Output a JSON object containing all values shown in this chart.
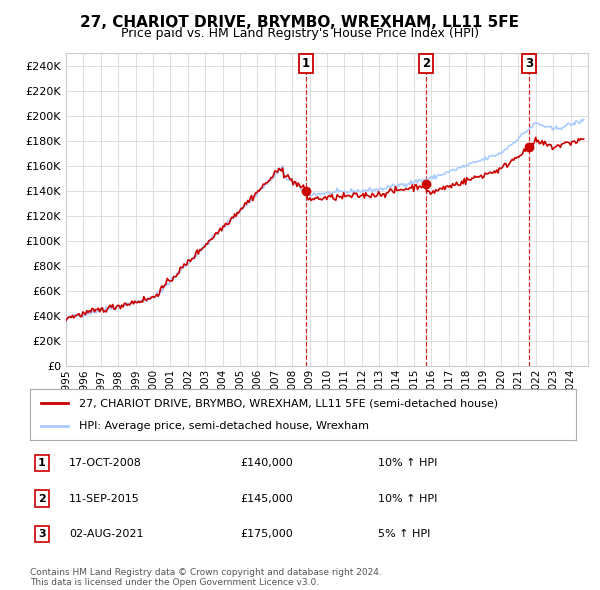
{
  "title": "27, CHARIOT DRIVE, BRYMBO, WREXHAM, LL11 5FE",
  "subtitle": "Price paid vs. HM Land Registry's House Price Index (HPI)",
  "legend_line1": "27, CHARIOT DRIVE, BRYMBO, WREXHAM, LL11 5FE (semi-detached house)",
  "legend_line2": "HPI: Average price, semi-detached house, Wrexham",
  "footer": "Contains HM Land Registry data © Crown copyright and database right 2024.\nThis data is licensed under the Open Government Licence v3.0.",
  "sales": [
    {
      "label": "1",
      "date": "17-OCT-2008",
      "price": 140000,
      "hpi_note": "10% ↑ HPI",
      "x": 2008.8
    },
    {
      "label": "2",
      "date": "11-SEP-2015",
      "price": 145000,
      "hpi_note": "10% ↑ HPI",
      "x": 2015.7
    },
    {
      "label": "3",
      "date": "02-AUG-2021",
      "price": 175000,
      "hpi_note": "5% ↑ HPI",
      "x": 2021.6
    }
  ],
  "vline_color": "#cc0000",
  "property_line_color": "#cc0000",
  "hpi_line_color": "#aaccff",
  "ylim": [
    0,
    250000
  ],
  "background_color": "#ffffff",
  "grid_color": "#dddddd"
}
